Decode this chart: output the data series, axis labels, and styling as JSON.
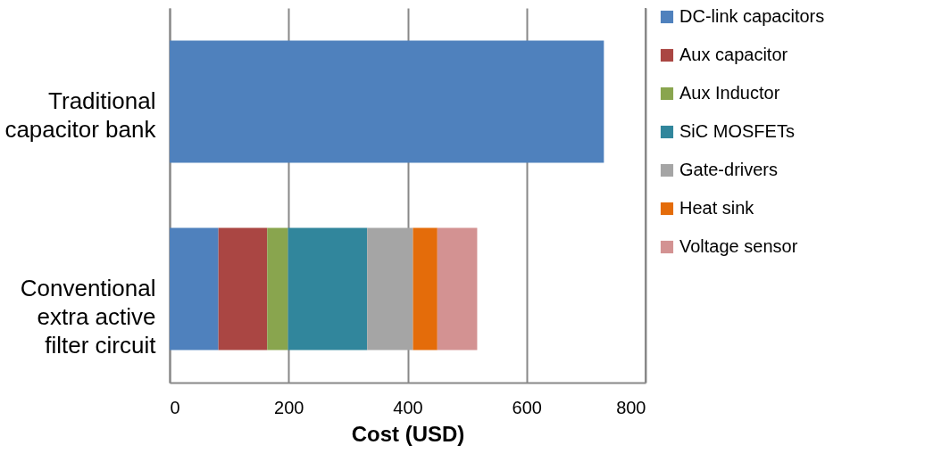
{
  "chart_data": {
    "type": "bar",
    "orientation": "horizontal",
    "stacked": true,
    "categories": [
      "Traditional\ncapacitor bank",
      "Conventional\nextra active\nfilter circuit"
    ],
    "series": [
      {
        "name": "DC-link capacitors",
        "color": "#4f81bd",
        "values": [
          730,
          82
        ]
      },
      {
        "name": "Aux capacitor",
        "color": "#aa4643",
        "values": [
          null,
          82
        ]
      },
      {
        "name": "Aux Inductor",
        "color": "#89a54e",
        "values": [
          null,
          35
        ]
      },
      {
        "name": "SiC MOSFETs",
        "color": "#31869c",
        "values": [
          null,
          133
        ]
      },
      {
        "name": "Gate-drivers",
        "color": "#a5a5a5",
        "values": [
          null,
          77
        ]
      },
      {
        "name": "Heat sink",
        "color": "#e46c0a",
        "values": [
          null,
          41
        ]
      },
      {
        "name": "Voltage sensor",
        "color": "#d39292",
        "values": [
          null,
          67
        ]
      }
    ],
    "xlabel": "Cost (USD)",
    "xlim": [
      0,
      800
    ],
    "xticks": [
      0,
      200,
      400,
      600,
      800
    ],
    "grid": "x",
    "legend": "right"
  }
}
